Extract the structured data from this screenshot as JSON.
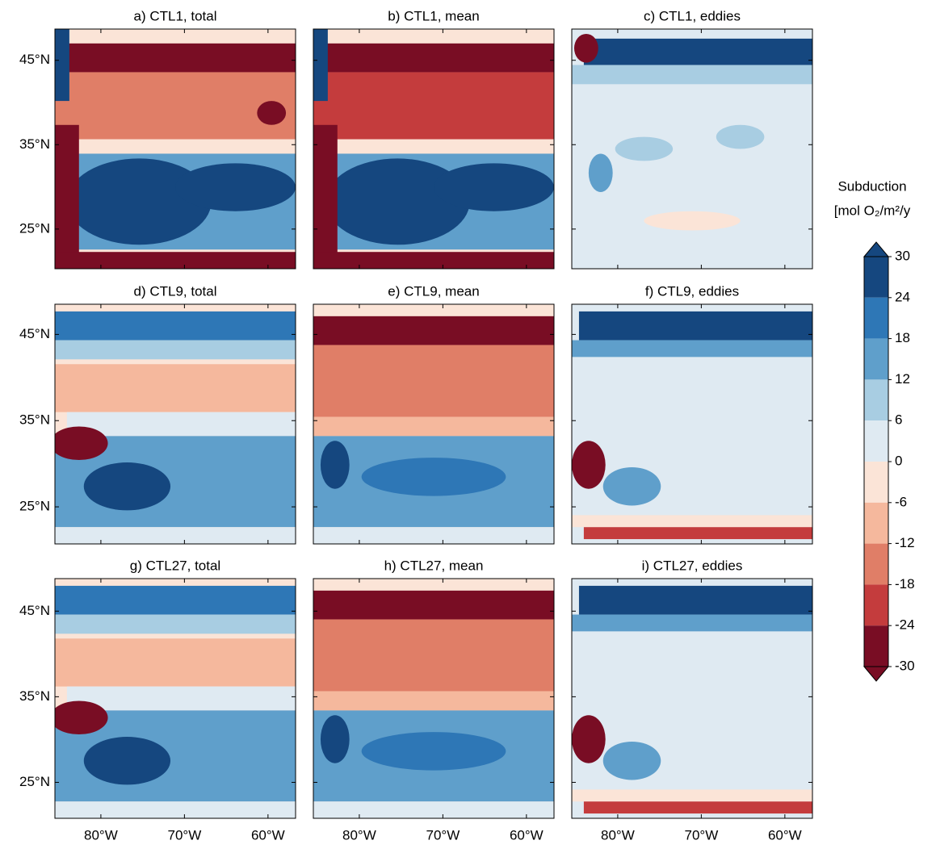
{
  "chart_data": [
    {
      "type": "contour",
      "title": "a) CTL1, total",
      "xlim": [
        -85.5,
        -56.7
      ],
      "ylim": [
        20.3,
        48.7
      ],
      "yticks": [
        {
          "value": 25,
          "label": "25°N"
        },
        {
          "value": 35,
          "label": "35°N"
        },
        {
          "value": 45,
          "label": "45°N"
        }
      ]
    },
    {
      "type": "contour",
      "title": "b) CTL1, mean",
      "xlim": [
        -85.5,
        -56.7
      ],
      "ylim": [
        20.3,
        48.7
      ]
    },
    {
      "type": "contour",
      "title": "c) CTL1, eddies",
      "xlim": [
        -85.5,
        -56.7
      ],
      "ylim": [
        20.3,
        48.7
      ]
    },
    {
      "type": "contour",
      "title": "d) CTL9, total",
      "xlim": [
        -85.5,
        -56.7
      ],
      "ylim": [
        20.7,
        48.5
      ],
      "yticks": [
        {
          "value": 25,
          "label": "25°N"
        },
        {
          "value": 35,
          "label": "35°N"
        },
        {
          "value": 45,
          "label": "45°N"
        }
      ]
    },
    {
      "type": "contour",
      "title": "e) CTL9, mean",
      "xlim": [
        -85.5,
        -56.7
      ],
      "ylim": [
        20.7,
        48.5
      ]
    },
    {
      "type": "contour",
      "title": "f) CTL9, eddies",
      "xlim": [
        -85.5,
        -56.7
      ],
      "ylim": [
        20.7,
        48.5
      ]
    },
    {
      "type": "contour",
      "title": "g) CTL27, total",
      "xlim": [
        -85.5,
        -56.7
      ],
      "ylim": [
        20.8,
        48.8
      ],
      "yticks": [
        {
          "value": 25,
          "label": "25°N"
        },
        {
          "value": 35,
          "label": "35°N"
        },
        {
          "value": 45,
          "label": "45°N"
        }
      ],
      "xticks": [
        {
          "value": -80,
          "label": "80°W"
        },
        {
          "value": -70,
          "label": "70°W"
        },
        {
          "value": -60,
          "label": "60°W"
        }
      ]
    },
    {
      "type": "contour",
      "title": "h) CTL27, mean",
      "xlim": [
        -85.5,
        -56.7
      ],
      "ylim": [
        20.8,
        48.8
      ],
      "xticks": [
        {
          "value": -80,
          "label": "80°W"
        },
        {
          "value": -70,
          "label": "70°W"
        },
        {
          "value": -60,
          "label": "60°W"
        }
      ]
    },
    {
      "type": "contour",
      "title": "i) CTL27, eddies",
      "xlim": [
        -85.5,
        -56.7
      ],
      "ylim": [
        20.8,
        48.8
      ],
      "xticks": [
        {
          "value": -80,
          "label": "80°W"
        },
        {
          "value": -70,
          "label": "70°W"
        },
        {
          "value": -60,
          "label": "60°W"
        }
      ]
    },
    {
      "type": "colorbar",
      "title": "Subduction",
      "label": "[mol O₂/m²/y",
      "ylim": [
        -30,
        30
      ],
      "ticks": [
        30,
        24,
        18,
        12,
        6,
        0,
        -6,
        -12,
        -18,
        -24,
        -30
      ],
      "colors": [
        "#15477f",
        "#2e77b6",
        "#5f9fcb",
        "#a8cde2",
        "#dfeaf2",
        "#fbe4d7",
        "#f5b89d",
        "#e07e67",
        "#c43c3d",
        "#790d24"
      ]
    }
  ]
}
